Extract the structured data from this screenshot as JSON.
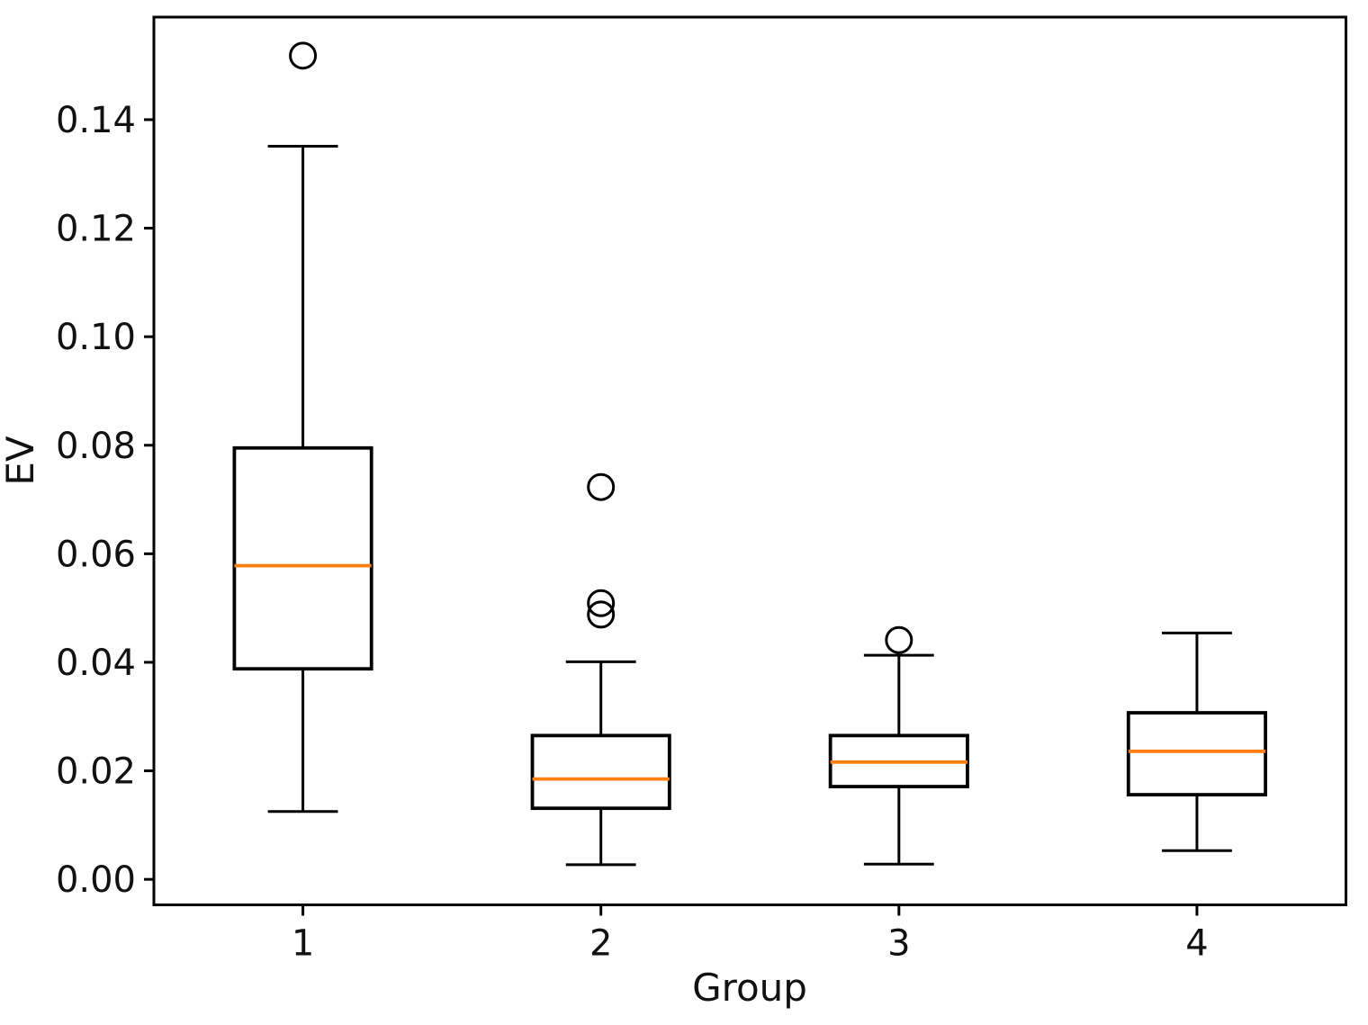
{
  "figure": {
    "background": "#ffffff"
  },
  "chart_data": {
    "type": "boxplot",
    "title": "",
    "xlabel": "Group",
    "ylabel": "EV",
    "categories": [
      "1",
      "2",
      "3",
      "4"
    ],
    "positions": [
      1,
      2,
      3,
      4
    ],
    "xlim": [
      0.5,
      4.5
    ],
    "ylim": [
      -0.0047,
      0.1589
    ],
    "yticks": [
      0.0,
      0.02,
      0.04,
      0.06,
      0.08,
      0.1,
      0.12,
      0.14
    ],
    "ytick_labels": [
      "0.00",
      "0.02",
      "0.04",
      "0.06",
      "0.08",
      "0.10",
      "0.12",
      "0.14"
    ],
    "grid": false,
    "legend": null,
    "box_width": 0.46,
    "cap_width": 0.235,
    "colors": {
      "line": "#000000",
      "median": "#ff7f0e",
      "text": "#111111",
      "background": "#ffffff"
    },
    "boxes": [
      {
        "label": "1",
        "position": 1,
        "whisker_low": 0.0125,
        "q1": 0.0388,
        "median": 0.0578,
        "q3": 0.0795,
        "whisker_high": 0.1351,
        "outliers": [
          0.1518
        ]
      },
      {
        "label": "2",
        "position": 2,
        "whisker_low": 0.0027,
        "q1": 0.0131,
        "median": 0.0185,
        "q3": 0.0265,
        "whisker_high": 0.0401,
        "outliers": [
          0.0723,
          0.0509,
          0.0488
        ]
      },
      {
        "label": "3",
        "position": 3,
        "whisker_low": 0.0028,
        "q1": 0.0171,
        "median": 0.0216,
        "q3": 0.0265,
        "whisker_high": 0.0413,
        "outliers": [
          0.0441
        ]
      },
      {
        "label": "4",
        "position": 4,
        "whisker_low": 0.0053,
        "q1": 0.0156,
        "median": 0.0236,
        "q3": 0.0307,
        "whisker_high": 0.0454,
        "outliers": []
      }
    ]
  }
}
